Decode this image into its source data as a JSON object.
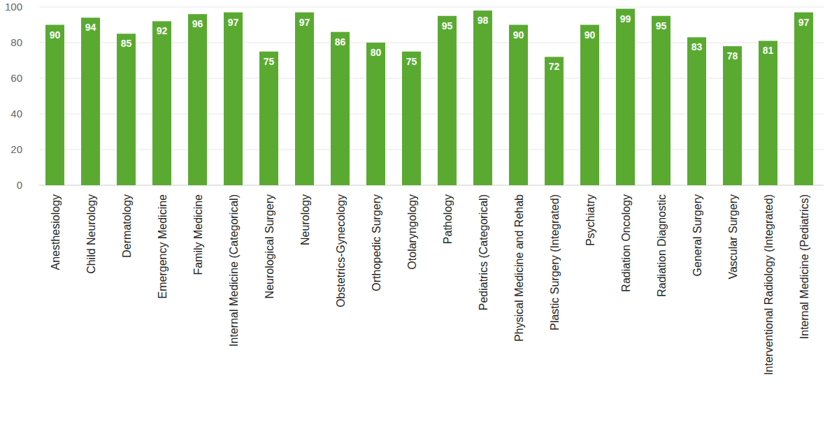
{
  "chart_data": {
    "type": "bar",
    "categories": [
      "Anesthesiology",
      "Child Neurology",
      "Dermatology",
      "Emergency Medicine",
      "Family Medicine",
      "Internal Medicine (Categorical)",
      "Neurological Surgery",
      "Neurology",
      "Obstetrics-Gynecology",
      "Orthopedic Surgery",
      "Otolaryngology",
      "Pathology",
      "Pediatrics (Categorical)",
      "Physical Medicine and Rehab",
      "Plastic Surgery (Integrated)",
      "Psychiatry",
      "Radiation Oncology",
      "Radiation Diagnostic",
      "General Surgery",
      "Vascular Surgery",
      "Interventional Radiology (Integrated)",
      "Internal Medicine (Pediatrics)"
    ],
    "values": [
      90,
      94,
      85,
      92,
      96,
      97,
      75,
      97,
      86,
      80,
      75,
      95,
      98,
      90,
      72,
      90,
      99,
      95,
      83,
      78,
      81,
      97
    ],
    "color": "#5aaa32",
    "ylim": [
      0,
      100
    ],
    "yticks": [
      0,
      20,
      40,
      60,
      80,
      100
    ],
    "grid": true,
    "data_labels": true
  }
}
